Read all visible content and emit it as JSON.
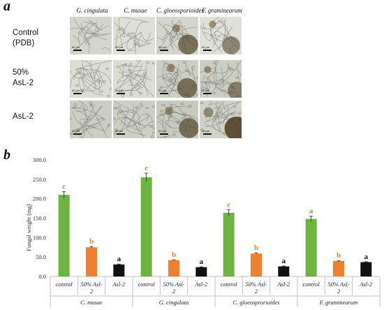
{
  "panel_a": {
    "letter": "a",
    "columns": [
      "G. cingulata",
      "C. musae",
      "C. gloeosporioides",
      "F. graminearum"
    ],
    "rows": [
      {
        "lines": [
          "Control",
          "(PDB)"
        ]
      },
      {
        "lines": [
          "50%",
          "AsL-2"
        ]
      },
      {
        "lines": [
          "AsL-2"
        ]
      }
    ],
    "scale_label": "50 μm"
  },
  "panel_b": {
    "letter": "b"
  },
  "chart_data": {
    "type": "bar",
    "ylabel": "Fungal weight (mg)",
    "ylim": [
      0,
      300
    ],
    "yticks": [
      "0.0",
      "50.0",
      "100.0",
      "150.0",
      "200.0",
      "250.0",
      "300.0"
    ],
    "groups": [
      {
        "name": "C. musae",
        "bars": [
          {
            "label": "control",
            "value": 210,
            "err": 8,
            "letter": "c",
            "color": "#6eb43f"
          },
          {
            "label": "50% Asl-2",
            "value": 75,
            "err": 2,
            "letter": "b",
            "color": "#f07f2e"
          },
          {
            "label": "Asl-2",
            "value": 31,
            "err": 1,
            "letter": "a",
            "color": "#111111"
          }
        ]
      },
      {
        "name": "G. cingulata",
        "bars": [
          {
            "label": "control",
            "value": 255,
            "err": 11,
            "letter": "c",
            "color": "#6eb43f"
          },
          {
            "label": "50% Asl-2",
            "value": 42,
            "err": 1,
            "letter": "b",
            "color": "#f07f2e"
          },
          {
            "label": "Asl-2",
            "value": 24,
            "err": 1,
            "letter": "a",
            "color": "#111111"
          }
        ]
      },
      {
        "name": "C. gloeosprorioides",
        "bars": [
          {
            "label": "control",
            "value": 164,
            "err": 8,
            "letter": "c",
            "color": "#6eb43f"
          },
          {
            "label": "50% Asl-2",
            "value": 59,
            "err": 2,
            "letter": "b",
            "color": "#f07f2e"
          },
          {
            "label": "Asl-2",
            "value": 26,
            "err": 1,
            "letter": "a",
            "color": "#111111"
          }
        ]
      },
      {
        "name": "F. graminearum",
        "bars": [
          {
            "label": "control",
            "value": 148,
            "err": 7,
            "letter": "a",
            "color": "#6eb43f"
          },
          {
            "label": "50% Asl-2",
            "value": 40,
            "err": 1,
            "letter": "b",
            "color": "#f07f2e"
          },
          {
            "label": "Asl-2",
            "value": 37,
            "err": 1,
            "letter": "a",
            "color": "#111111"
          }
        ]
      }
    ]
  }
}
